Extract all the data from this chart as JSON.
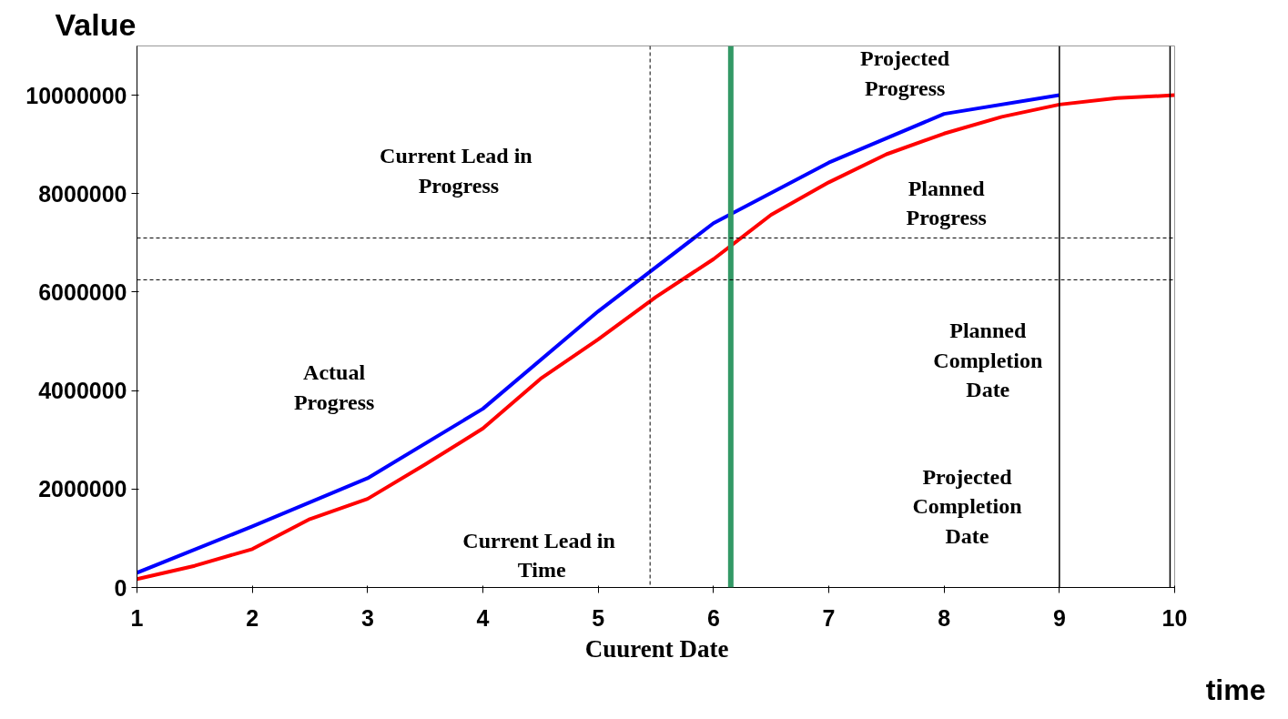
{
  "chart_data": {
    "type": "line",
    "xlabel": "time",
    "ylabel": "Value",
    "xlim": [
      1,
      10
    ],
    "ylim": [
      0,
      11000000
    ],
    "xticks": [
      1,
      2,
      3,
      4,
      5,
      6,
      7,
      8,
      9,
      10
    ],
    "yticks": [
      0,
      2000000,
      4000000,
      6000000,
      8000000,
      10000000
    ],
    "grid": false,
    "marker": "none",
    "line_style": "solid",
    "series": [
      {
        "color": "#0000ff",
        "x": [
          1,
          2,
          3,
          4,
          5,
          6,
          7,
          8,
          9
        ],
        "values": [
          300000,
          1240000,
          2220000,
          3630000,
          5610000,
          7400000,
          8630000,
          9620000,
          10000000
        ]
      },
      {
        "color": "#ff0000",
        "x": [
          1,
          1.5,
          2,
          2.5,
          3,
          3.5,
          4,
          4.5,
          5,
          5.5,
          6,
          6.5,
          7,
          7.5,
          8,
          8.5,
          9,
          9.5,
          10
        ],
        "values": [
          170000,
          440000,
          780000,
          1390000,
          1800000,
          2500000,
          3230000,
          4240000,
          5040000,
          5900000,
          6670000,
          7570000,
          8230000,
          8800000,
          9220000,
          9560000,
          9810000,
          9940000,
          10000000
        ]
      }
    ],
    "ref_lines": [
      {
        "axis": "x",
        "value": 6.15,
        "label": "Cuurent Date",
        "color": "#339966",
        "line_style": "solid"
      },
      {
        "axis": "x",
        "value": 9,
        "label": null,
        "color": "#000000",
        "line_style": "solid"
      },
      {
        "axis": "x",
        "value": 9.96,
        "label": null,
        "color": "#000000",
        "line_style": "solid"
      },
      {
        "axis": "y",
        "value": 7100000,
        "label": null,
        "color": "#000000",
        "line_style": "dashed"
      },
      {
        "axis": "y",
        "value": 6250000,
        "label": null,
        "color": "#000000",
        "line_style": "dashed"
      },
      {
        "axis": "x",
        "value": 5.45,
        "label": null,
        "color": "#000000",
        "line_style": "dashed"
      }
    ],
    "annotations": [
      "Projected\nProgress",
      "Current  Lead in\nProgress",
      "Planned\nProgress",
      "Actual\nProgress",
      "Planned\nCompletion\nDate",
      "Projected\nCompletion\nDate",
      "Current  Lead in\nTime"
    ]
  }
}
